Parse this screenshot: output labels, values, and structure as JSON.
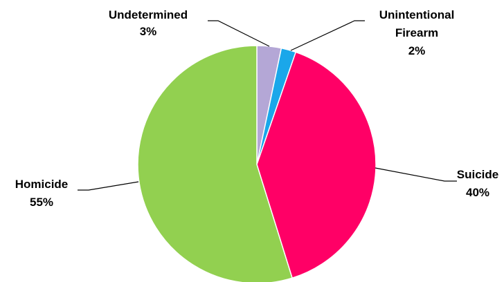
{
  "chart_data": {
    "type": "pie",
    "start_angle_deg": 0,
    "direction": "clockwise",
    "slices": [
      {
        "key": "undetermined",
        "lines": [
          "Undetermined"
        ],
        "percent_label": "3%",
        "value": 3.3,
        "color": "#b4a7d6"
      },
      {
        "key": "unintentional-firearm",
        "lines": [
          "Unintentional",
          "Firearm"
        ],
        "percent_label": "2%",
        "value": 2.0,
        "color": "#1aa7ea"
      },
      {
        "key": "suicide",
        "lines": [
          "Suicide"
        ],
        "percent_label": "40%",
        "value": 39.9,
        "color": "#ff0066"
      },
      {
        "key": "homicide",
        "lines": [
          "Homicide"
        ],
        "percent_label": "55%",
        "value": 54.8,
        "color": "#92d050"
      }
    ]
  }
}
